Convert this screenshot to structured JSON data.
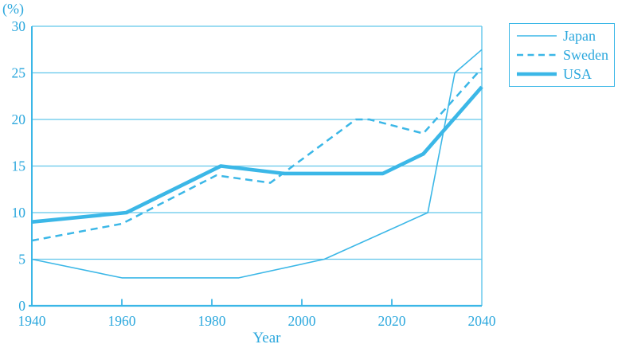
{
  "chart_data": {
    "type": "line",
    "title": "",
    "ylabel": "(%)",
    "xlabel": "Year",
    "xlim": [
      1940,
      2040
    ],
    "ylim": [
      0,
      30
    ],
    "xticks": [
      1940,
      1960,
      1980,
      2000,
      2020,
      2040
    ],
    "yticks": [
      0,
      5,
      10,
      15,
      20,
      25,
      30
    ],
    "grid": "horizontal",
    "legend_position": "outside-top-right",
    "series": [
      {
        "name": "Japan",
        "style": "thin-solid",
        "points": [
          [
            1940,
            5
          ],
          [
            1960,
            3
          ],
          [
            1986,
            3
          ],
          [
            2005,
            5
          ],
          [
            2028,
            10
          ],
          [
            2034,
            25
          ],
          [
            2040,
            27.5
          ]
        ]
      },
      {
        "name": "Sweden",
        "style": "dashed",
        "points": [
          [
            1940,
            7
          ],
          [
            1960,
            8.8
          ],
          [
            1981,
            14
          ],
          [
            1993,
            13.2
          ],
          [
            2012,
            20
          ],
          [
            2015,
            20
          ],
          [
            2027,
            18.5
          ],
          [
            2040,
            25.5
          ]
        ]
      },
      {
        "name": "USA",
        "style": "thick-solid",
        "points": [
          [
            1940,
            9
          ],
          [
            1961,
            10
          ],
          [
            1982,
            15
          ],
          [
            1996,
            14.2
          ],
          [
            2018,
            14.2
          ],
          [
            2027,
            16.3
          ],
          [
            2040,
            23.5
          ]
        ]
      }
    ],
    "colors": {
      "accent": "#3bb7e7",
      "text": "#2aa7dd",
      "grid": "#62c6eb"
    }
  }
}
